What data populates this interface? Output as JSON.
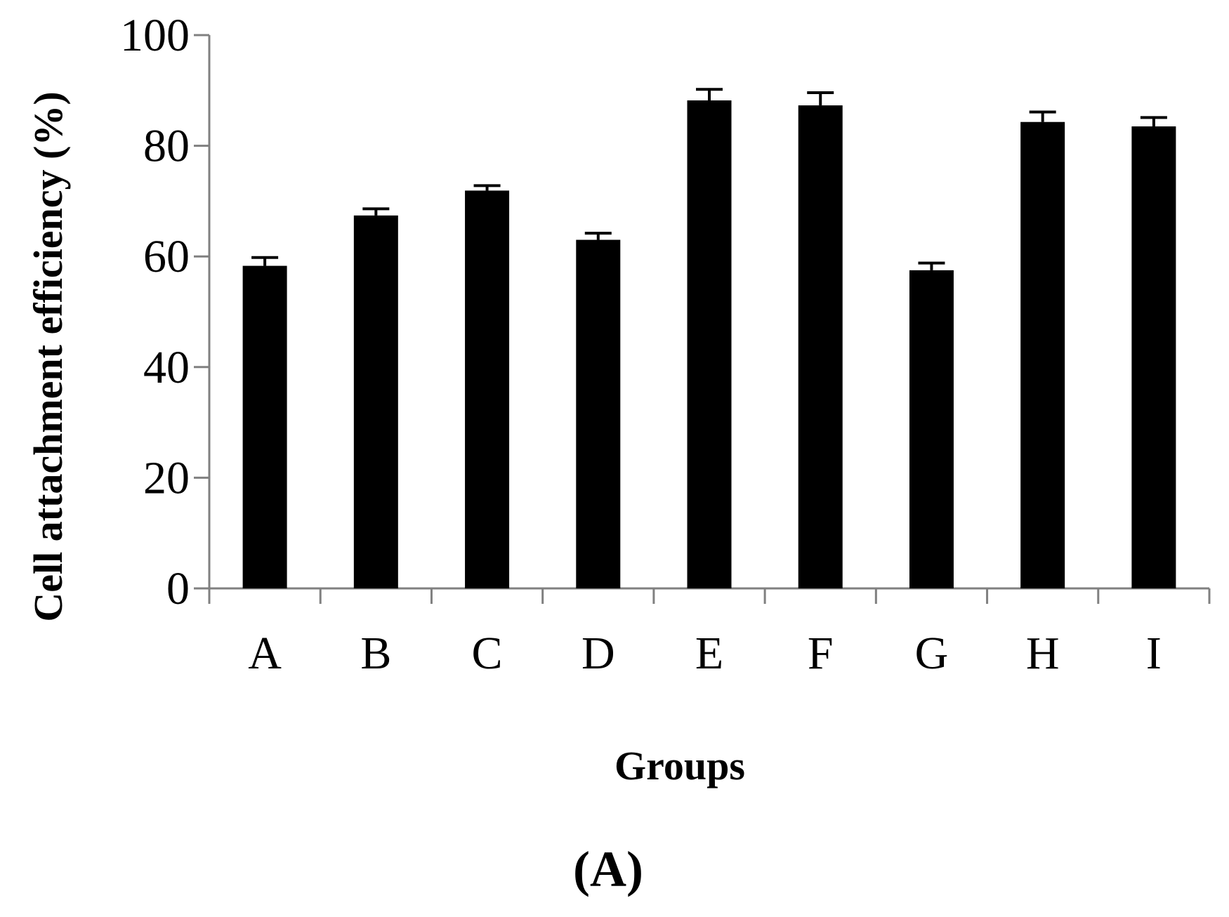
{
  "chart_data": {
    "type": "bar",
    "title": "",
    "xlabel": "Groups",
    "ylabel": "Cell  attachment efficiency (%)",
    "categories": [
      "A",
      "B",
      "C",
      "D",
      "E",
      "F",
      "G",
      "H",
      "I"
    ],
    "values": [
      58.3,
      67.4,
      71.9,
      63.0,
      88.2,
      87.3,
      57.5,
      84.3,
      83.5
    ],
    "error": [
      1.5,
      1.2,
      0.9,
      1.2,
      2.0,
      2.3,
      1.3,
      1.8,
      1.6
    ],
    "ylim": [
      0,
      100
    ],
    "yticks": [
      0,
      20,
      40,
      60,
      80,
      100
    ],
    "grid": false,
    "legend": "none",
    "bar_color": "#000000",
    "axis_color": "#808080"
  },
  "panel_label": "(A)"
}
